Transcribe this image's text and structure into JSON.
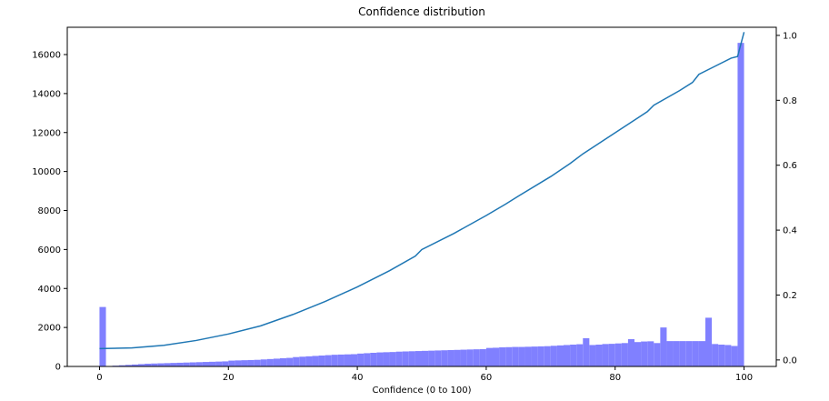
{
  "chart_data": {
    "type": "bar",
    "title": "Confidence distribution",
    "xlabel": "Confidence (0 to 100)",
    "ylabel": "",
    "xlim": [
      -5,
      105
    ],
    "ylim": [
      0,
      17400
    ],
    "y2lim": [
      -0.02,
      1.025
    ],
    "xticks": [
      0,
      20,
      40,
      60,
      80,
      100
    ],
    "yticks": [
      0,
      2000,
      4000,
      6000,
      8000,
      10000,
      12000,
      14000,
      16000
    ],
    "y2ticks": [
      0.0,
      0.2,
      0.4,
      0.6,
      0.8,
      1.0
    ],
    "grid": false,
    "legend": "none",
    "colors": {
      "bars": "#8080ff",
      "line": "#1f77b4"
    },
    "series": [
      {
        "type": "bar",
        "bin_width": 1,
        "x": [
          0,
          1,
          2,
          3,
          4,
          5,
          6,
          7,
          8,
          9,
          10,
          11,
          12,
          13,
          14,
          15,
          16,
          17,
          18,
          19,
          20,
          21,
          22,
          23,
          24,
          25,
          26,
          27,
          28,
          29,
          30,
          31,
          32,
          33,
          34,
          35,
          36,
          37,
          38,
          39,
          40,
          41,
          42,
          43,
          44,
          45,
          46,
          47,
          48,
          49,
          50,
          51,
          52,
          53,
          54,
          55,
          56,
          57,
          58,
          59,
          60,
          61,
          62,
          63,
          64,
          65,
          66,
          67,
          68,
          69,
          70,
          71,
          72,
          73,
          74,
          75,
          76,
          77,
          78,
          79,
          80,
          81,
          82,
          83,
          84,
          85,
          86,
          87,
          88,
          89,
          90,
          91,
          92,
          93,
          94,
          95,
          96,
          97,
          98,
          99
        ],
        "values": [
          3050,
          20,
          40,
          60,
          80,
          100,
          120,
          140,
          150,
          160,
          170,
          180,
          190,
          200,
          210,
          220,
          230,
          240,
          250,
          260,
          300,
          310,
          320,
          330,
          340,
          360,
          380,
          400,
          420,
          440,
          480,
          500,
          520,
          540,
          560,
          580,
          600,
          610,
          620,
          630,
          660,
          680,
          700,
          720,
          730,
          740,
          760,
          770,
          780,
          790,
          800,
          810,
          820,
          830,
          840,
          850,
          860,
          870,
          880,
          890,
          950,
          960,
          980,
          990,
          1000,
          1000,
          1010,
          1020,
          1030,
          1040,
          1060,
          1080,
          1100,
          1120,
          1140,
          1450,
          1100,
          1120,
          1150,
          1160,
          1180,
          1200,
          1400,
          1250,
          1280,
          1290,
          1200,
          2000,
          1300,
          1300,
          1300,
          1300,
          1300,
          1300,
          2500,
          1150,
          1120,
          1100,
          1050,
          16600
        ]
      },
      {
        "type": "line",
        "axis": "right",
        "x": [
          0,
          5,
          10,
          15,
          20,
          25,
          30,
          35,
          40,
          45,
          49,
          50,
          55,
          60,
          63,
          65,
          70,
          73,
          75,
          80,
          85,
          86,
          90,
          92,
          93,
          95,
          98,
          99,
          100
        ],
        "values": [
          0.035,
          0.037,
          0.045,
          0.06,
          0.08,
          0.105,
          0.14,
          0.18,
          0.225,
          0.275,
          0.32,
          0.34,
          0.39,
          0.445,
          0.48,
          0.505,
          0.565,
          0.605,
          0.635,
          0.7,
          0.765,
          0.785,
          0.83,
          0.855,
          0.88,
          0.9,
          0.93,
          0.935,
          1.01
        ]
      }
    ]
  }
}
